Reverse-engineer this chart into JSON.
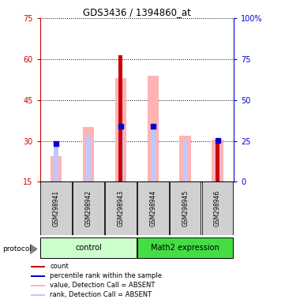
{
  "title": "GDS3436 / 1394860_at",
  "samples": [
    "GSM298941",
    "GSM298942",
    "GSM298943",
    "GSM298944",
    "GSM298945",
    "GSM298946"
  ],
  "ylim_left": [
    15,
    75
  ],
  "ylim_right": [
    0,
    100
  ],
  "yticks_left": [
    15,
    30,
    45,
    60,
    75
  ],
  "yticks_right": [
    0,
    25,
    50,
    75,
    100
  ],
  "ytick_labels_right": [
    "0",
    "25",
    "50",
    "75",
    "100%"
  ],
  "value_bars": [
    24.5,
    35.0,
    53.0,
    54.0,
    32.0,
    30.5
  ],
  "rank_bars": [
    29.0,
    31.5,
    35.5,
    35.5,
    30.3,
    30.2
  ],
  "count_bars": [
    0,
    0,
    61.5,
    0,
    0,
    30.5
  ],
  "blue_dots": [
    29.0,
    0,
    35.5,
    35.5,
    0,
    30.2
  ],
  "value_bar_color": "#ffb3b3",
  "rank_bar_color": "#c0c8ff",
  "count_bar_color": "#cc0000",
  "blue_dot_color": "#0000cc",
  "background_color": "#ffffff",
  "left_axis_color": "#cc0000",
  "right_axis_color": "#0000cc",
  "control_color": "#ccffcc",
  "math2_color": "#44dd44",
  "sample_box_color": "#d0d0d0",
  "legend_items": [
    {
      "color": "#cc0000",
      "label": "count"
    },
    {
      "color": "#0000cc",
      "label": "percentile rank within the sample"
    },
    {
      "color": "#ffb3b3",
      "label": "value, Detection Call = ABSENT"
    },
    {
      "color": "#c0c8ff",
      "label": "rank, Detection Call = ABSENT"
    }
  ]
}
